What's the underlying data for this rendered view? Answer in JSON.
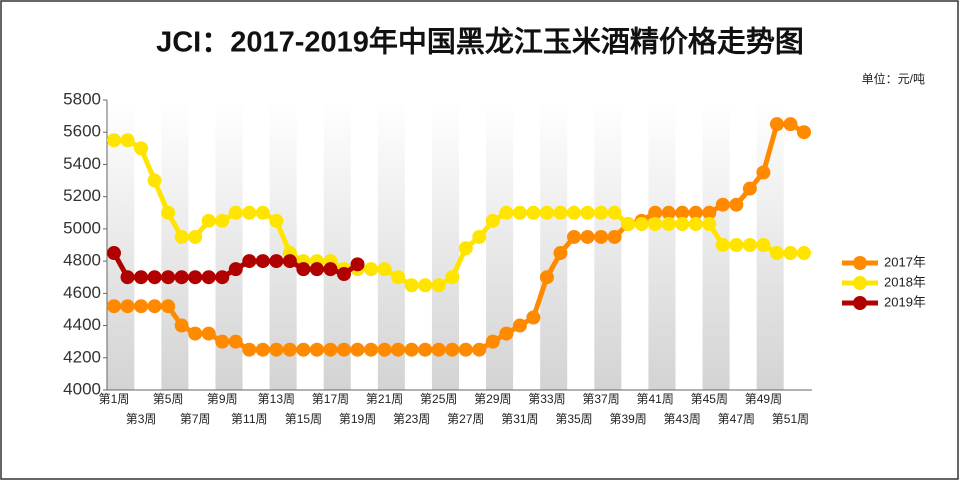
{
  "chart_data": {
    "type": "line",
    "title": "JCI：2017-2019年中国黑龙江玉米酒精价格走势图",
    "unit_label": "单位：元/吨",
    "categories": [
      "第1周",
      null,
      "第3周",
      null,
      "第5周",
      null,
      "第7周",
      null,
      "第9周",
      null,
      "第11周",
      null,
      "第13周",
      null,
      "第15周",
      null,
      "第17周",
      null,
      "第19周",
      null,
      "第21周",
      null,
      "第23周",
      null,
      "第25周",
      null,
      "第27周",
      null,
      "第29周",
      null,
      "第31周",
      null,
      "第33周",
      null,
      "第35周",
      null,
      "第37周",
      null,
      "第39周",
      null,
      "第41周",
      null,
      "第43周",
      null,
      "第45周",
      null,
      "第47周",
      null,
      "第49周",
      null,
      "第51周",
      null
    ],
    "series": [
      {
        "name": "2017年",
        "color": "#ff8a00",
        "values": [
          4520,
          4520,
          4520,
          4520,
          4520,
          4400,
          4350,
          4350,
          4300,
          4300,
          4250,
          4250,
          4250,
          4250,
          4250,
          4250,
          4250,
          4250,
          4250,
          4250,
          4250,
          4250,
          4250,
          4250,
          4250,
          4250,
          4250,
          4250,
          4300,
          4350,
          4400,
          4450,
          4700,
          4850,
          4950,
          4950,
          4950,
          4950,
          5030,
          5050,
          5100,
          5100,
          5100,
          5100,
          5100,
          5150,
          5150,
          5250,
          5350,
          5650,
          5650,
          5600
        ]
      },
      {
        "name": "2018年",
        "color": "#ffe400",
        "values": [
          5550,
          5550,
          5500,
          5300,
          5100,
          4950,
          4950,
          5050,
          5050,
          5100,
          5100,
          5100,
          5050,
          4850,
          4800,
          4800,
          4800,
          4750,
          4750,
          4750,
          4750,
          4700,
          4650,
          4650,
          4650,
          4700,
          4880,
          4950,
          5050,
          5100,
          5100,
          5100,
          5100,
          5100,
          5100,
          5100,
          5100,
          5100,
          5030,
          5030,
          5030,
          5030,
          5030,
          5030,
          5030,
          4900,
          4900,
          4900,
          4900,
          4850,
          4850,
          4850
        ]
      },
      {
        "name": "2019年",
        "color": "#b00000",
        "values": [
          4850,
          4700,
          4700,
          4700,
          4700,
          4700,
          4700,
          4700,
          4700,
          4750,
          4800,
          4800,
          4800,
          4800,
          4750,
          4750,
          4750,
          4720,
          4780,
          null,
          null,
          null,
          null,
          null,
          null,
          null,
          null,
          null,
          null,
          null,
          null,
          null,
          null,
          null,
          null,
          null,
          null,
          null,
          null,
          null,
          null,
          null,
          null,
          null,
          null,
          null,
          null,
          null,
          null,
          null,
          null,
          null
        ]
      }
    ],
    "ylim": [
      4000,
      5800
    ],
    "yticks": [
      4000,
      4200,
      4400,
      4600,
      4800,
      5000,
      5200,
      5400,
      5600,
      5800
    ],
    "legend": "right"
  }
}
